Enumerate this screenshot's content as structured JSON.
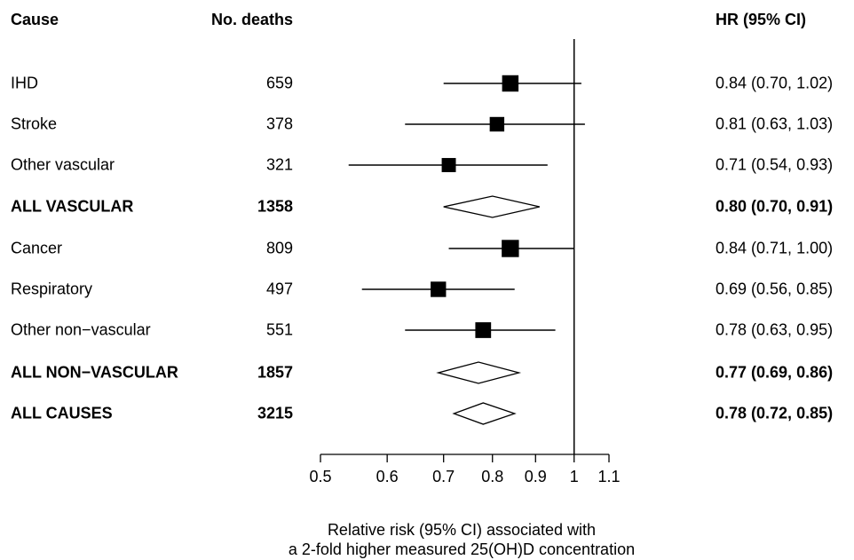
{
  "chart_data": {
    "type": "forest",
    "headers": {
      "cause": "Cause",
      "deaths": "No. deaths",
      "hr": "HR (95% CI)"
    },
    "rows": [
      {
        "cause": "IHD",
        "deaths": "659",
        "hr": 0.84,
        "lo": 0.7,
        "hi": 1.02,
        "hr_text": "0.84 (0.70, 1.02)",
        "summary": false
      },
      {
        "cause": "Stroke",
        "deaths": "378",
        "hr": 0.81,
        "lo": 0.63,
        "hi": 1.03,
        "hr_text": "0.81 (0.63, 1.03)",
        "summary": false
      },
      {
        "cause": "Other vascular",
        "deaths": "321",
        "hr": 0.71,
        "lo": 0.54,
        "hi": 0.93,
        "hr_text": "0.71 (0.54, 0.93)",
        "summary": false
      },
      {
        "cause": "ALL VASCULAR",
        "deaths": "1358",
        "hr": 0.8,
        "lo": 0.7,
        "hi": 0.91,
        "hr_text": "0.80 (0.70, 0.91)",
        "summary": true
      },
      {
        "cause": "Cancer",
        "deaths": "809",
        "hr": 0.84,
        "lo": 0.71,
        "hi": 1.0,
        "hr_text": "0.84 (0.71, 1.00)",
        "summary": false
      },
      {
        "cause": "Respiratory",
        "deaths": "497",
        "hr": 0.69,
        "lo": 0.56,
        "hi": 0.85,
        "hr_text": "0.69 (0.56, 0.85)",
        "summary": false
      },
      {
        "cause": "Other non−vascular",
        "deaths": "551",
        "hr": 0.78,
        "lo": 0.63,
        "hi": 0.95,
        "hr_text": "0.78 (0.63, 0.95)",
        "summary": false
      },
      {
        "cause": "ALL NON−VASCULAR",
        "deaths": "1857",
        "hr": 0.77,
        "lo": 0.69,
        "hi": 0.86,
        "hr_text": "0.77 (0.69, 0.86)",
        "summary": true
      },
      {
        "cause": "ALL CAUSES",
        "deaths": "3215",
        "hr": 0.78,
        "lo": 0.72,
        "hi": 0.85,
        "hr_text": "0.78 (0.72, 0.85)",
        "summary": true
      }
    ],
    "x_scale": "log",
    "xlim": [
      0.5,
      1.1
    ],
    "x_ticks": [
      0.5,
      0.6,
      0.7,
      0.8,
      0.9,
      1,
      1.1
    ],
    "x_tick_labels": [
      "0.5",
      "0.6",
      "0.7",
      "0.8",
      "0.9",
      "1",
      "1.1"
    ],
    "reference_line": 1,
    "xlabel_line1": "Relative risk (95% CI) associated with",
    "xlabel_line2": "a 2-fold higher measured 25(OH)D concentration"
  }
}
